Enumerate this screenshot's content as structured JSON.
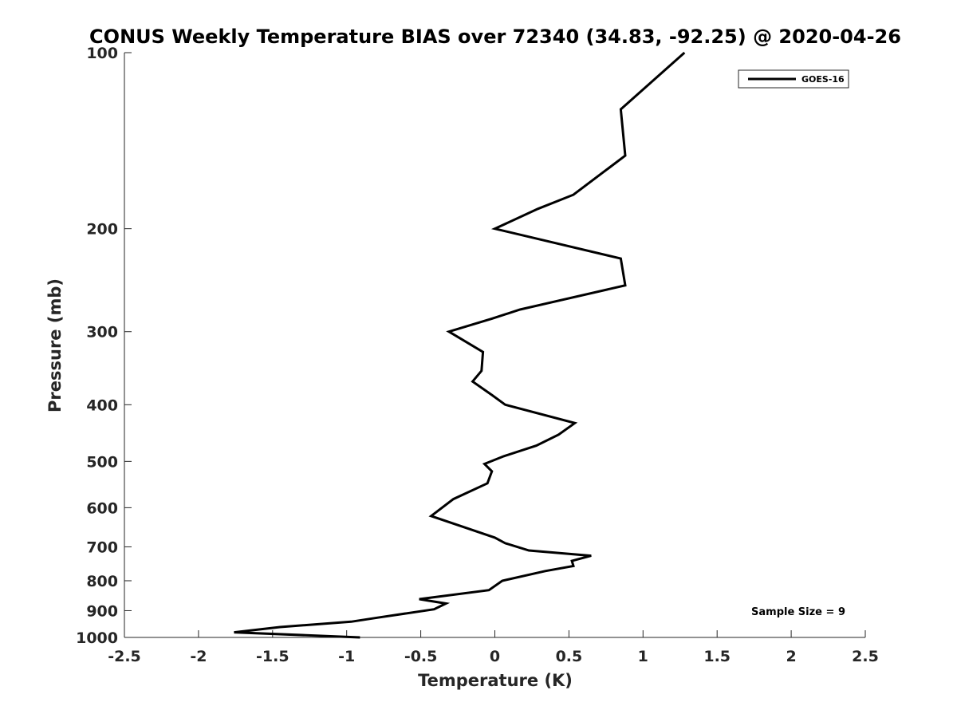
{
  "chart_data": {
    "type": "line",
    "title": "CONUS Weekly Temperature BIAS over 72340 (34.83, -92.25) @ 2020-04-26",
    "xlabel": "Temperature (K)",
    "ylabel": "Pressure (mb)",
    "xlim": [
      -2.5,
      2.5
    ],
    "ylim": [
      100,
      1000
    ],
    "y_scale": "log",
    "y_reversed": true,
    "x_ticks": [
      "-2.5",
      "-2",
      "-1.5",
      "-1",
      "-0.5",
      "0",
      "0.5",
      "1",
      "1.5",
      "2",
      "2.5"
    ],
    "x_tick_values": [
      -2.5,
      -2,
      -1.5,
      -1,
      -0.5,
      0,
      0.5,
      1,
      1.5,
      2,
      2.5
    ],
    "y_ticks": [
      "100",
      "200",
      "300",
      "400",
      "500",
      "600",
      "700",
      "800",
      "900",
      "1000"
    ],
    "y_tick_values": [
      100,
      200,
      300,
      400,
      500,
      600,
      700,
      800,
      900,
      1000
    ],
    "grid": false,
    "legend": {
      "position": "top-right"
    },
    "annotations": [
      {
        "text": "Sample Size = 9",
        "position": "bottom-right"
      }
    ],
    "series": [
      {
        "name": "GOES-16",
        "color": "#000000",
        "points": [
          [
            1.28,
            100
          ],
          [
            0.85,
            125
          ],
          [
            0.88,
            150
          ],
          [
            0.53,
            175
          ],
          [
            0.29,
            185
          ],
          [
            0.0,
            200
          ],
          [
            0.85,
            225
          ],
          [
            0.88,
            250
          ],
          [
            0.17,
            275
          ],
          [
            -0.02,
            285
          ],
          [
            -0.31,
            300
          ],
          [
            -0.08,
            325
          ],
          [
            -0.09,
            350
          ],
          [
            -0.15,
            365
          ],
          [
            -0.02,
            385
          ],
          [
            0.07,
            400
          ],
          [
            0.54,
            430
          ],
          [
            0.43,
            450
          ],
          [
            0.28,
            470
          ],
          [
            0.06,
            490
          ],
          [
            -0.07,
            505
          ],
          [
            -0.02,
            520
          ],
          [
            -0.05,
            545
          ],
          [
            -0.28,
            580
          ],
          [
            -0.43,
            620
          ],
          [
            -0.19,
            650
          ],
          [
            0.0,
            675
          ],
          [
            0.07,
            690
          ],
          [
            0.23,
            710
          ],
          [
            0.65,
            725
          ],
          [
            0.52,
            740
          ],
          [
            0.53,
            755
          ],
          [
            0.34,
            770
          ],
          [
            0.05,
            800
          ],
          [
            -0.04,
            830
          ],
          [
            -0.51,
            860
          ],
          [
            -0.33,
            875
          ],
          [
            -0.41,
            895
          ],
          [
            -0.79,
            925
          ],
          [
            -0.97,
            940
          ],
          [
            -1.45,
            960
          ],
          [
            -1.76,
            980
          ],
          [
            -0.91,
            1000
          ]
        ]
      }
    ]
  }
}
